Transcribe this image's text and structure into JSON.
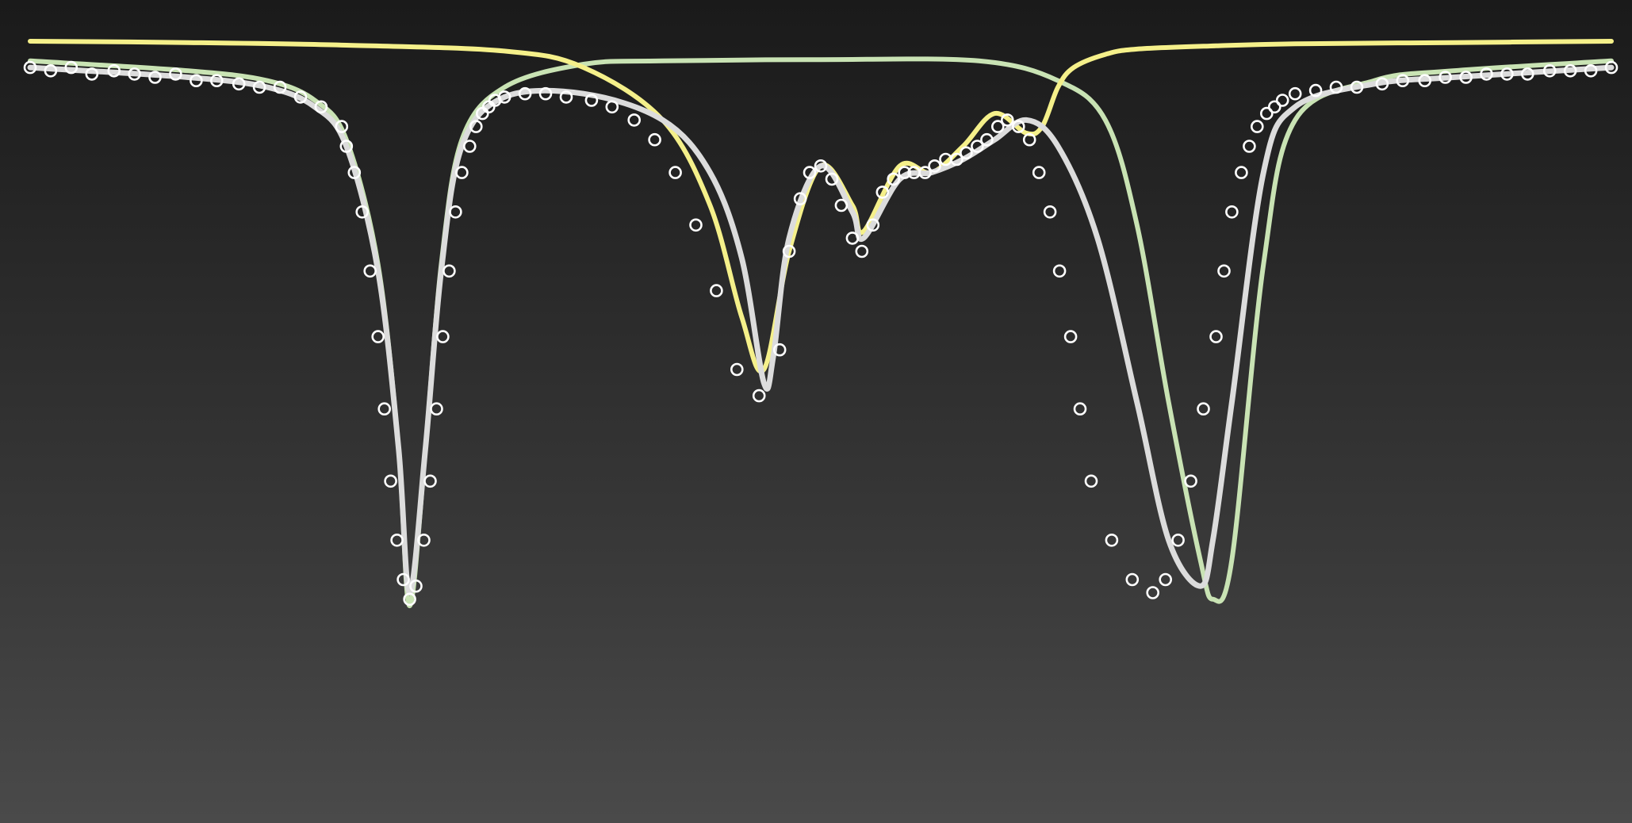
{
  "chart_data": {
    "type": "line",
    "title": "",
    "xlabel": "",
    "ylabel": "",
    "xlim": [
      0,
      1
    ],
    "ylim": [
      0,
      1
    ],
    "grid": false,
    "legend": "none",
    "colors": {
      "background_top": "#1a1a1a",
      "background_bottom": "#4a4a4a",
      "data_points": "#ffffff",
      "total_fit": "#dcdcdc",
      "yellow_component": "#f5f08a",
      "green_component": "#c9e3b4"
    },
    "series": [
      {
        "role": "data-points",
        "style": "open-circles",
        "x": [
          0.0,
          0.013,
          0.026,
          0.039,
          0.053,
          0.066,
          0.079,
          0.092,
          0.105,
          0.118,
          0.132,
          0.145,
          0.158,
          0.171,
          0.184,
          0.197,
          0.2,
          0.205,
          0.21,
          0.215,
          0.22,
          0.224,
          0.228,
          0.232,
          0.236,
          0.24,
          0.244,
          0.249,
          0.253,
          0.257,
          0.261,
          0.265,
          0.269,
          0.273,
          0.278,
          0.282,
          0.286,
          0.29,
          0.294,
          0.3,
          0.313,
          0.326,
          0.339,
          0.355,
          0.368,
          0.382,
          0.395,
          0.408,
          0.421,
          0.434,
          0.447,
          0.461,
          0.474,
          0.48,
          0.487,
          0.493,
          0.5,
          0.507,
          0.513,
          0.52,
          0.526,
          0.533,
          0.539,
          0.546,
          0.553,
          0.559,
          0.566,
          0.572,
          0.579,
          0.586,
          0.592,
          0.599,
          0.605,
          0.612,
          0.618,
          0.625,
          0.632,
          0.638,
          0.645,
          0.651,
          0.658,
          0.664,
          0.671,
          0.684,
          0.697,
          0.71,
          0.718,
          0.726,
          0.734,
          0.742,
          0.75,
          0.755,
          0.76,
          0.766,
          0.771,
          0.776,
          0.782,
          0.787,
          0.792,
          0.8,
          0.813,
          0.826,
          0.839,
          0.855,
          0.868,
          0.882,
          0.895,
          0.908,
          0.921,
          0.934,
          0.947,
          0.961,
          0.974,
          0.987,
          1.0
        ],
        "y": [
          0.04,
          0.045,
          0.04,
          0.05,
          0.045,
          0.05,
          0.055,
          0.05,
          0.06,
          0.06,
          0.065,
          0.07,
          0.07,
          0.085,
          0.1,
          0.13,
          0.16,
          0.2,
          0.26,
          0.35,
          0.45,
          0.56,
          0.67,
          0.76,
          0.82,
          0.85,
          0.83,
          0.76,
          0.67,
          0.56,
          0.45,
          0.35,
          0.26,
          0.2,
          0.16,
          0.13,
          0.11,
          0.1,
          0.09,
          0.085,
          0.08,
          0.08,
          0.085,
          0.09,
          0.1,
          0.12,
          0.15,
          0.2,
          0.28,
          0.38,
          0.5,
          0.54,
          0.47,
          0.32,
          0.24,
          0.2,
          0.19,
          0.21,
          0.25,
          0.3,
          0.32,
          0.28,
          0.23,
          0.21,
          0.2,
          0.2,
          0.2,
          0.19,
          0.18,
          0.18,
          0.17,
          0.16,
          0.15,
          0.13,
          0.12,
          0.13,
          0.15,
          0.2,
          0.26,
          0.35,
          0.45,
          0.56,
          0.67,
          0.76,
          0.82,
          0.84,
          0.82,
          0.76,
          0.67,
          0.56,
          0.45,
          0.35,
          0.26,
          0.2,
          0.16,
          0.13,
          0.11,
          0.1,
          0.09,
          0.08,
          0.075,
          0.07,
          0.07,
          0.065,
          0.06,
          0.06,
          0.055,
          0.055,
          0.05,
          0.05,
          0.05,
          0.045,
          0.045,
          0.045,
          0.04
        ]
      },
      {
        "role": "total-fit",
        "style": "line",
        "x": [
          0.0,
          0.1,
          0.15,
          0.18,
          0.2,
          0.22,
          0.233,
          0.24,
          0.25,
          0.26,
          0.273,
          0.3,
          0.35,
          0.4,
          0.43,
          0.45,
          0.464,
          0.47,
          0.48,
          0.5,
          0.52,
          0.527,
          0.55,
          0.57,
          0.59,
          0.61,
          0.63,
          0.65,
          0.675,
          0.7,
          0.72,
          0.74,
          0.748,
          0.76,
          0.78,
          0.8,
          0.85,
          0.9,
          1.0
        ],
        "y": [
          0.04,
          0.055,
          0.07,
          0.1,
          0.16,
          0.35,
          0.62,
          0.84,
          0.62,
          0.35,
          0.16,
          0.085,
          0.08,
          0.12,
          0.2,
          0.33,
          0.52,
          0.48,
          0.3,
          0.19,
          0.26,
          0.3,
          0.21,
          0.2,
          0.18,
          0.15,
          0.12,
          0.16,
          0.3,
          0.55,
          0.76,
          0.83,
          0.76,
          0.55,
          0.2,
          0.1,
          0.065,
          0.055,
          0.04
        ]
      },
      {
        "role": "component-yellow",
        "style": "line",
        "x": [
          0.0,
          0.1,
          0.2,
          0.3,
          0.35,
          0.4,
          0.43,
          0.45,
          0.464,
          0.48,
          0.5,
          0.52,
          0.527,
          0.55,
          0.57,
          0.59,
          0.61,
          0.63,
          0.64,
          0.65,
          0.66,
          0.68,
          0.7,
          0.75,
          0.8,
          0.9,
          1.0
        ],
        "y": [
          0.0,
          0.002,
          0.006,
          0.015,
          0.04,
          0.12,
          0.25,
          0.42,
          0.5,
          0.32,
          0.19,
          0.25,
          0.29,
          0.19,
          0.2,
          0.16,
          0.11,
          0.14,
          0.13,
          0.07,
          0.04,
          0.02,
          0.012,
          0.007,
          0.004,
          0.002,
          0.0
        ]
      },
      {
        "role": "component-green",
        "style": "line",
        "x": [
          0.0,
          0.1,
          0.15,
          0.18,
          0.2,
          0.22,
          0.233,
          0.24,
          0.25,
          0.26,
          0.273,
          0.3,
          0.35,
          0.4,
          0.5,
          0.6,
          0.65,
          0.68,
          0.7,
          0.72,
          0.74,
          0.748,
          0.76,
          0.78,
          0.8,
          0.85,
          0.9,
          1.0
        ],
        "y": [
          0.03,
          0.045,
          0.06,
          0.09,
          0.15,
          0.34,
          0.62,
          0.86,
          0.62,
          0.34,
          0.15,
          0.07,
          0.035,
          0.03,
          0.028,
          0.03,
          0.06,
          0.12,
          0.28,
          0.55,
          0.79,
          0.85,
          0.79,
          0.34,
          0.12,
          0.06,
          0.045,
          0.03
        ]
      }
    ]
  }
}
